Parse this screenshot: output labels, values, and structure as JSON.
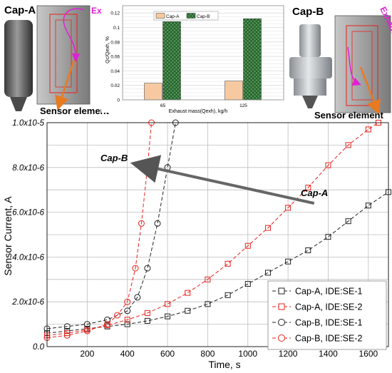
{
  "labels": {
    "cap_a_title": "Cap-A",
    "cap_b_title": "Cap-B",
    "exhaust_left": "Exhaust",
    "exhaust_right": "Exhaust",
    "sensor_left": "Sensor element",
    "sensor_right": "Sensor element",
    "annot_cap_b": "Cap-B",
    "annot_cap_a": "Cap-A"
  },
  "colors": {
    "cap_a_bar": "#f7c9a0",
    "cap_b_bar": "#4f9a56",
    "magenta": "#e020d8",
    "orange": "#e87a20",
    "red": "#e8221c",
    "black": "#222222"
  },
  "chart_data": [
    {
      "type": "bar",
      "categories": [
        "65",
        "125"
      ],
      "series": [
        {
          "name": "Cap-A",
          "values": [
            0.023,
            0.026
          ]
        },
        {
          "name": "Cap-B",
          "values": [
            0.108,
            0.112
          ]
        }
      ],
      "xlabel": "Exhaust mass(Qexh), kg/h",
      "ylabel": "Qc/Qexh, %",
      "ylim": [
        0,
        0.13
      ],
      "yticks": [
        "0",
        "0.02",
        "0.04",
        "0.06",
        "0.08",
        "0.1",
        "0.12"
      ],
      "grid": true,
      "legend": "top"
    },
    {
      "type": "scatter",
      "xlabel": "Time, s",
      "ylabel": "Sensor Current, A",
      "xlim": [
        0,
        1700
      ],
      "ylim": [
        0,
        1e-05
      ],
      "xticks": [
        "200",
        "400",
        "600",
        "800",
        "1000",
        "1200",
        "1400",
        "1600"
      ],
      "yticks": [
        "0.0",
        "2.0x10-6",
        "4.0x10-6",
        "6.0x10-6",
        "8.0x10-6",
        "1.0x10-5"
      ],
      "grid": true,
      "legend": "bottom-right",
      "series": [
        {
          "name": "Cap-A, IDE:SE-1",
          "x": [
            0,
            100,
            200,
            300,
            400,
            500,
            600,
            700,
            800,
            900,
            1000,
            1100,
            1200,
            1300,
            1400,
            1500,
            1600,
            1700
          ],
          "y": [
            6e-07,
            7e-07,
            8e-07,
            9e-07,
            1e-06,
            1.15e-06,
            1.35e-06,
            1.6e-06,
            1.9e-06,
            2.3e-06,
            2.8e-06,
            3.3e-06,
            3.8e-06,
            4.3e-06,
            4.9e-06,
            5.6e-06,
            6.3e-06,
            6.9e-06
          ]
        },
        {
          "name": "Cap-A, IDE:SE-2",
          "x": [
            0,
            100,
            200,
            300,
            400,
            500,
            600,
            700,
            800,
            900,
            1000,
            1100,
            1200,
            1300,
            1400,
            1500,
            1600,
            1650
          ],
          "y": [
            5e-07,
            6e-07,
            7.5e-07,
            9.5e-07,
            1.2e-06,
            1.5e-06,
            1.9e-06,
            2.4e-06,
            3e-06,
            3.7e-06,
            4.5e-06,
            5.3e-06,
            6.2e-06,
            7.1e-06,
            8.1e-06,
            9e-06,
            9.7e-06,
            1e-05
          ]
        },
        {
          "name": "Cap-B, IDE:SE-1",
          "x": [
            0,
            100,
            200,
            300,
            400,
            450,
            500,
            550,
            600,
            640
          ],
          "y": [
            8e-07,
            9e-07,
            1e-06,
            1.2e-06,
            1.6e-06,
            2.2e-06,
            3.5e-06,
            5.5e-06,
            8e-06,
            1e-05
          ]
        },
        {
          "name": "Cap-B, IDE:SE-2",
          "x": [
            0,
            100,
            200,
            300,
            350,
            400,
            440,
            470,
            500,
            520
          ],
          "y": [
            4e-07,
            5e-07,
            7e-07,
            1e-06,
            1.4e-06,
            2e-06,
            3.5e-06,
            5.5e-06,
            8e-06,
            1e-05
          ]
        }
      ],
      "annotations": [
        {
          "text": "Cap-B",
          "x": 330,
          "y": 8.4e-06
        },
        {
          "text": "Cap-A",
          "x": 1370,
          "y": 6.6e-06
        }
      ]
    }
  ]
}
